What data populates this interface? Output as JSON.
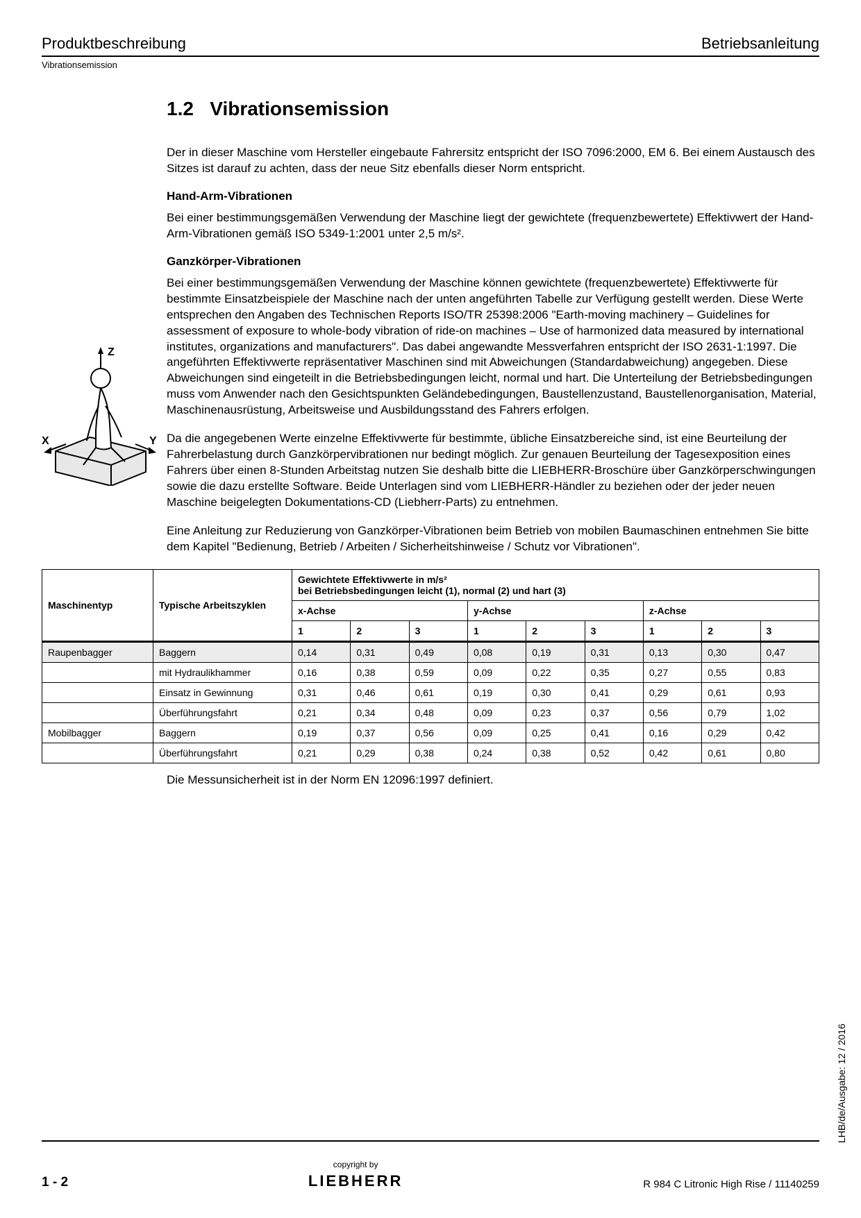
{
  "header": {
    "left": "Produktbeschreibung",
    "right": "Betriebsanleitung",
    "sub": "Vibrationsemission"
  },
  "section": {
    "number": "1.2",
    "title": "Vibrationsemission"
  },
  "paragraphs": {
    "intro": "Der in dieser Maschine vom Hersteller eingebaute Fahrersitz entspricht der ISO 7096:2000, EM 6. Bei einem Austausch des Sitzes ist darauf zu achten, dass der neue Sitz ebenfalls dieser Norm entspricht.",
    "hand_arm_head": "Hand-Arm-Vibrationen",
    "hand_arm": "Bei einer bestimmungsgemäßen Verwendung der Maschine liegt der gewichtete (frequenzbewertete) Effektivwert der Hand-Arm-Vibrationen gemäß ISO 5349-1:2001 unter 2,5 m/s².",
    "whole_body_head": "Ganzkörper-Vibrationen",
    "whole_body_1": "Bei einer bestimmungsgemäßen Verwendung der Maschine können gewichtete (frequenzbewertete) Effektivwerte für bestimmte Einsatzbeispiele der Maschine nach der unten angeführten Tabelle zur Verfügung gestellt werden. Diese Werte entsprechen den Angaben des Technischen Reports ISO/TR 25398:2006 \"Earth-moving machinery – Guidelines for assessment of exposure to whole-body vibration of ride-on machines – Use of harmonized data measured by international institutes, organizations and manufacturers\". Das dabei angewandte Messverfahren entspricht der ISO 2631-1:1997. Die angeführten Effektivwerte repräsentativer Maschinen sind mit Abweichungen (Standardabweichung) angegeben. Diese Abweichungen sind eingeteilt in die Betriebsbedingungen leicht, normal und hart. Die Unterteilung der Betriebsbedingungen muss vom Anwender nach den Gesichtspunkten Geländebedingungen, Baustellenzustand, Baustellenorganisation, Material, Maschinenausrüstung, Arbeitsweise und Ausbildungsstand des Fahrers erfolgen.",
    "whole_body_2": "Da die angegebenen Werte einzelne Effektivwerte für bestimmte, übliche Einsatzbereiche sind, ist eine Beurteilung der Fahrerbelastung durch Ganzkörpervibrationen nur bedingt möglich. Zur genauen Beurteilung der Tagesexposition eines Fahrers über einen 8-Stunden Arbeitstag nutzen Sie deshalb bitte die LIEBHERR-Broschüre über Ganzkörperschwingungen sowie die dazu erstellte Software. Beide Unterlagen sind vom LIEBHERR-Händler zu beziehen oder der jeder neuen Maschine beigelegten Dokumentations-CD (Liebherr-Parts) zu entnehmen.",
    "whole_body_3": "Eine Anleitung zur Reduzierung von Ganzkörper-Vibrationen beim Betrieb von mobilen Baumaschinen entnehmen Sie bitte dem Kapitel \"Bedienung, Betrieb / Arbeiten / Sicherheitshinweise / Schutz vor Vibrationen\"."
  },
  "figure": {
    "labels": {
      "x": "X",
      "y": "Y",
      "z": "Z"
    }
  },
  "table": {
    "head": {
      "col1": "Maschinentyp",
      "col2": "Typische Arbeitszyklen",
      "group_title_1": "Gewichtete Effektivwerte in m/s²",
      "group_title_2": "bei Betriebsbedingungen leicht (1), normal (2) und hart (3)",
      "x": "x-Achse",
      "y": "y-Achse",
      "z": "z-Achse",
      "n1": "1",
      "n2": "2",
      "n3": "3"
    },
    "rows": [
      {
        "m": "Raupenbagger",
        "c": "Baggern",
        "v": [
          "0,14",
          "0,31",
          "0,49",
          "0,08",
          "0,19",
          "0,31",
          "0,13",
          "0,30",
          "0,47"
        ],
        "hl": true
      },
      {
        "m": "",
        "c": "mit Hydraulikhammer",
        "v": [
          "0,16",
          "0,38",
          "0,59",
          "0,09",
          "0,22",
          "0,35",
          "0,27",
          "0,55",
          "0,83"
        ]
      },
      {
        "m": "",
        "c": "Einsatz in Gewinnung",
        "v": [
          "0,31",
          "0,46",
          "0,61",
          "0,19",
          "0,30",
          "0,41",
          "0,29",
          "0,61",
          "0,93"
        ]
      },
      {
        "m": "",
        "c": "Überführungsfahrt",
        "v": [
          "0,21",
          "0,34",
          "0,48",
          "0,09",
          "0,23",
          "0,37",
          "0,56",
          "0,79",
          "1,02"
        ]
      },
      {
        "m": "Mobilbagger",
        "c": "Baggern",
        "v": [
          "0,19",
          "0,37",
          "0,56",
          "0,09",
          "0,25",
          "0,41",
          "0,16",
          "0,29",
          "0,42"
        ]
      },
      {
        "m": "",
        "c": "Überführungsfahrt",
        "v": [
          "0,21",
          "0,29",
          "0,38",
          "0,24",
          "0,38",
          "0,52",
          "0,42",
          "0,61",
          "0,80"
        ]
      }
    ],
    "note": "Die Messunsicherheit ist in der Norm EN 12096:1997 definiert."
  },
  "footer": {
    "page": "1 - 2",
    "copyright": "copyright by",
    "brand": "LIEBHERR",
    "right": "R 984 C Litronic High Rise / 11140259"
  },
  "side": "LHB/de/Ausgabe: 12 / 2016"
}
